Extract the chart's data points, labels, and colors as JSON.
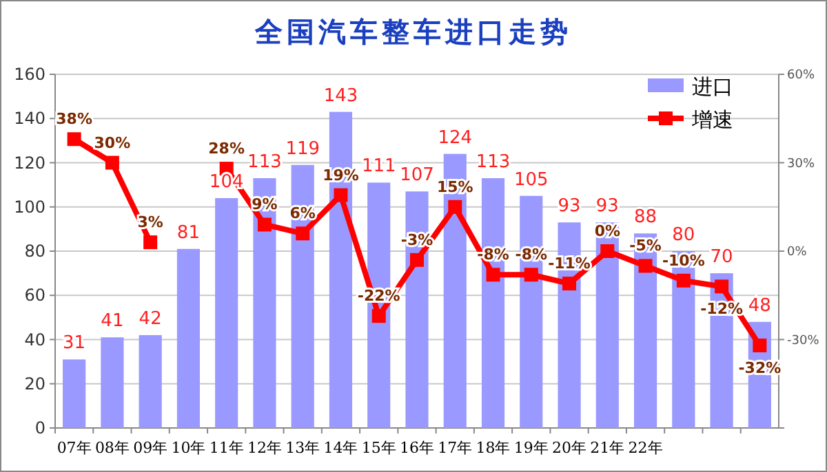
{
  "chart_data": {
    "type": "bar",
    "title": "全国汽车整车进口走势",
    "categories": [
      "07年",
      "08年",
      "09年",
      "10年",
      "11年",
      "12年",
      "13年",
      "14年",
      "15年",
      "16年",
      "17年",
      "18年",
      "19年",
      "20年",
      "21年",
      "22年",
      null,
      null,
      null
    ],
    "series": [
      {
        "name": "进口",
        "color": "#9999ff",
        "values": [
          31,
          41,
          42,
          81,
          104,
          113,
          119,
          143,
          111,
          107,
          124,
          113,
          105,
          93,
          93,
          88,
          80,
          70,
          48
        ],
        "value_labels": [
          "31",
          "41",
          "42",
          "81",
          "104",
          "113",
          "119",
          "143",
          "111",
          "107",
          "124",
          "113",
          "105",
          "93",
          "93",
          "88",
          "80",
          "70",
          "48"
        ]
      },
      {
        "name": "增速",
        "type": "line",
        "axis": "y2",
        "color": "#ff0000",
        "marker": "square",
        "values": [
          38,
          30,
          3,
          null,
          28,
          9,
          6,
          19,
          -22,
          -3,
          15,
          -8,
          -8,
          -11,
          0,
          -5,
          -10,
          -12,
          -32
        ],
        "value_labels": [
          "38%",
          "30%",
          "3%",
          null,
          "28%",
          "9%",
          "6%",
          "19%",
          "-22%",
          "-3%",
          "15%",
          "-8%",
          "-8%",
          "-11%",
          "0%",
          "-5%",
          "-10%",
          "-12%",
          "-32%"
        ]
      }
    ],
    "ylim": [
      0,
      160
    ],
    "yticks": [
      0,
      20,
      40,
      60,
      80,
      100,
      120,
      140,
      160
    ],
    "y2lim": [
      -60,
      60
    ],
    "y2ticks": [
      {
        "value": -60,
        "label": null
      },
      {
        "value": -30,
        "label": "-30%"
      },
      {
        "value": 0,
        "label": "0%"
      },
      {
        "value": 30,
        "label": "30%"
      },
      {
        "value": 60,
        "label": "60%"
      }
    ],
    "grid": "y",
    "legend": "top right"
  }
}
